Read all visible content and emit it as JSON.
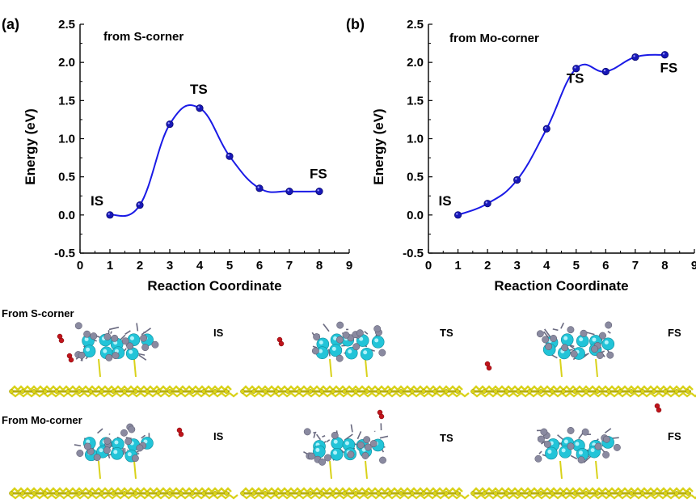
{
  "chart_data": [
    {
      "type": "line",
      "panel_label": "(a)",
      "annotation": "from S-corner",
      "xlabel": "Reaction Coordinate",
      "ylabel": "Energy (eV)",
      "xlim": [
        0,
        9
      ],
      "ylim": [
        -0.5,
        2.5
      ],
      "xticks": [
        "0",
        "1",
        "2",
        "3",
        "4",
        "5",
        "6",
        "7",
        "8",
        "9"
      ],
      "yticks": [
        "-0.5",
        "0.0",
        "0.5",
        "1.0",
        "1.5",
        "2.0",
        "2.5"
      ],
      "series": [
        {
          "x": [
            1,
            2,
            3,
            4,
            5,
            6,
            7,
            8
          ],
          "y": [
            0.0,
            0.13,
            1.19,
            1.4,
            0.77,
            0.35,
            0.31,
            0.31
          ]
        }
      ],
      "point_labels": [
        {
          "text": "IS",
          "x": 1,
          "y": 0.0
        },
        {
          "text": "TS",
          "x": 4,
          "y": 1.4
        },
        {
          "text": "FS",
          "x": 8,
          "y": 0.31
        }
      ],
      "color": "#1a1ae6",
      "grid": false
    },
    {
      "type": "line",
      "panel_label": "(b)",
      "annotation": "from Mo-corner",
      "xlabel": "Reaction Coordinate",
      "ylabel": "Energy (eV)",
      "xlim": [
        0,
        9
      ],
      "ylim": [
        -0.5,
        2.5
      ],
      "xticks": [
        "0",
        "1",
        "2",
        "3",
        "4",
        "5",
        "6",
        "7",
        "8",
        "9"
      ],
      "yticks": [
        "-0.5",
        "0.0",
        "0.5",
        "1.0",
        "1.5",
        "2.0",
        "2.5"
      ],
      "series": [
        {
          "x": [
            1,
            2,
            3,
            4,
            5,
            6,
            7,
            8
          ],
          "y": [
            0.0,
            0.15,
            0.46,
            1.13,
            1.92,
            1.88,
            2.07,
            2.1
          ]
        }
      ],
      "point_labels": [
        {
          "text": "IS",
          "x": 1,
          "y": 0.0
        },
        {
          "text": "TS",
          "x": 5,
          "y": 1.92
        },
        {
          "text": "FS",
          "x": 8,
          "y": 2.1
        }
      ],
      "color": "#1a1ae6",
      "grid": false
    }
  ],
  "structures": {
    "rows": [
      {
        "label": "From S-corner",
        "states": [
          "IS",
          "TS",
          "FS"
        ]
      },
      {
        "label": "From Mo-corner",
        "states": [
          "IS",
          "TS",
          "FS"
        ]
      }
    ],
    "colors": {
      "substrate": "#d9d21a",
      "mo": "#22c4d8",
      "s": "#8a8aa0",
      "oxygen": "#c0141c"
    }
  }
}
